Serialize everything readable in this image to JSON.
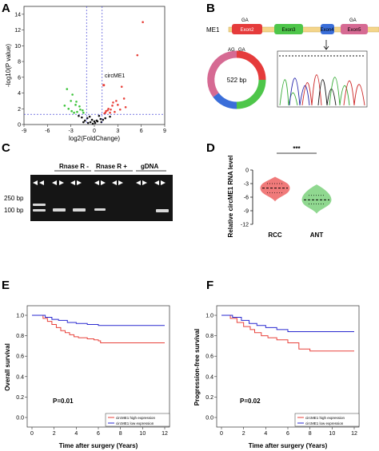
{
  "panels": {
    "A": {
      "label": "A"
    },
    "B": {
      "label": "B"
    },
    "C": {
      "label": "C"
    },
    "D": {
      "label": "D"
    },
    "E": {
      "label": "E"
    },
    "F": {
      "label": "F"
    }
  },
  "panelB": {
    "gene": "ME1",
    "exons": [
      "Exon2",
      "Exon3",
      "Exon4",
      "Exon5"
    ],
    "ga_top": "GA",
    "ga_top2": "GA",
    "ring_ag": "AG",
    "ring_ga": "GA",
    "ring_size": "522 bp"
  },
  "panelC": {
    "groups": [
      "Rnase R -",
      "Rnase R +",
      "gDNA"
    ],
    "markers": [
      "250 bp",
      "100 bp"
    ]
  },
  "colors": {
    "red": "#e8413a",
    "green": "#3cc43a",
    "blue": "#2a2ad0",
    "black": "#111111"
  },
  "chart_data": [
    {
      "panel": "A",
      "type": "scatter",
      "xlabel": "log2(FoldChange)",
      "ylabel": "-log10(P value)",
      "xticks": [
        "-9",
        "-6",
        "-3",
        "0",
        "3",
        "6",
        "9"
      ],
      "yticks": [
        "0",
        "2",
        "4",
        "6",
        "8",
        "10",
        "12",
        "14"
      ],
      "xlim": [
        -9,
        9
      ],
      "ylim": [
        0,
        15
      ],
      "thresholds": {
        "x": [
          -1,
          1
        ],
        "y": 1.3
      },
      "annotation": "circME1",
      "highlight_point": {
        "x": 1.2,
        "y": 5.0
      },
      "series": [
        {
          "color": "red",
          "points": [
            [
              6.2,
              13.0
            ],
            [
              5.5,
              8.8
            ],
            [
              3.5,
              4.8
            ],
            [
              2.8,
              3.0
            ],
            [
              2.3,
              2.4
            ],
            [
              1.8,
              2.0
            ],
            [
              1.5,
              1.7
            ],
            [
              2.1,
              1.9
            ],
            [
              3.0,
              2.5
            ],
            [
              2.6,
              1.6
            ],
            [
              1.4,
              1.5
            ],
            [
              3.3,
              1.9
            ],
            [
              4.0,
              2.2
            ],
            [
              2.0,
              1.5
            ],
            [
              1.7,
              1.8
            ],
            [
              2.4,
              2.8
            ],
            [
              3.8,
              3.3
            ],
            [
              1.3,
              1.4
            ]
          ]
        },
        {
          "color": "green",
          "points": [
            [
              -3.5,
              4.5
            ],
            [
              -2.8,
              3.8
            ],
            [
              -3.0,
              3.0
            ],
            [
              -2.4,
              2.5
            ],
            [
              -3.3,
              2.0
            ],
            [
              -1.8,
              1.9
            ],
            [
              -2.2,
              1.6
            ],
            [
              -1.4,
              1.5
            ],
            [
              -2.6,
              1.5
            ],
            [
              -3.8,
              2.4
            ],
            [
              -1.9,
              2.3
            ],
            [
              -2.9,
              1.7
            ],
            [
              -1.5,
              1.8
            ],
            [
              -2.3,
              2.9
            ]
          ]
        },
        {
          "color": "black",
          "points": [
            [
              -0.5,
              0.3
            ],
            [
              0.4,
              0.4
            ],
            [
              -0.9,
              0.8
            ],
            [
              0.8,
              0.7
            ],
            [
              -0.2,
              0.1
            ],
            [
              0.1,
              0.2
            ],
            [
              -0.6,
              1.0
            ],
            [
              0.6,
              1.1
            ],
            [
              -1.2,
              0.5
            ],
            [
              1.1,
              0.6
            ],
            [
              -1.6,
              0.9
            ],
            [
              1.4,
              0.8
            ],
            [
              -0.3,
              0.6
            ],
            [
              0.3,
              0.5
            ],
            [
              -2.0,
              1.1
            ],
            [
              2.0,
              1.0
            ],
            [
              -0.8,
              0.2
            ],
            [
              0.9,
              0.3
            ],
            [
              0.0,
              0.4
            ],
            [
              -1.4,
              0.3
            ]
          ]
        }
      ]
    },
    {
      "panel": "D",
      "type": "violin",
      "title": "***",
      "ylabel": "Relative circME1 RNA level",
      "categories": [
        "RCC",
        "ANT"
      ],
      "yticks": [
        "0",
        "-3",
        "-6",
        "-9",
        "-12"
      ],
      "ylim": [
        -12,
        0
      ],
      "series": [
        {
          "name": "RCC",
          "color": "#f07a7a",
          "median": -4.0,
          "q1": -5.0,
          "q3": -3.0,
          "min": -6.8,
          "max": -1.6
        },
        {
          "name": "ANT",
          "color": "#90d890",
          "median": -6.6,
          "q1": -7.5,
          "q3": -5.6,
          "min": -9.5,
          "max": -3.3
        }
      ]
    },
    {
      "panel": "E",
      "type": "line",
      "xlabel": "Time after surgery (Years)",
      "ylabel": "Overall survival",
      "annotation": "P=0.01",
      "xticks": [
        "0",
        "2",
        "4",
        "6",
        "8",
        "10",
        "12"
      ],
      "yticks": [
        "0.0",
        "0.2",
        "0.4",
        "0.6",
        "0.8",
        "1.0"
      ],
      "xlim": [
        0,
        12
      ],
      "ylim": [
        0,
        1
      ],
      "series": [
        {
          "name": "circME1 high expression",
          "color": "red",
          "x": [
            0,
            1.0,
            1.4,
            1.8,
            2.2,
            2.6,
            3.0,
            3.4,
            3.8,
            4.2,
            5.0,
            5.6,
            6.0,
            6.2,
            12
          ],
          "y": [
            1.0,
            0.97,
            0.94,
            0.91,
            0.88,
            0.85,
            0.83,
            0.81,
            0.79,
            0.78,
            0.77,
            0.76,
            0.75,
            0.73,
            0.73
          ]
        },
        {
          "name": "circME1 low expression",
          "color": "blue",
          "x": [
            0,
            1.2,
            1.8,
            2.4,
            3.2,
            4.0,
            5.0,
            6.0,
            12
          ],
          "y": [
            1.0,
            0.98,
            0.96,
            0.95,
            0.93,
            0.92,
            0.91,
            0.9,
            0.9
          ]
        }
      ]
    },
    {
      "panel": "F",
      "type": "line",
      "xlabel": "Time after surgery (Years)",
      "ylabel": "Progression-free survival",
      "annotation": "P=0.02",
      "xticks": [
        "0",
        "2",
        "4",
        "6",
        "8",
        "10",
        "12"
      ],
      "yticks": [
        "0.0",
        "0.2",
        "0.4",
        "0.6",
        "0.8",
        "1.0"
      ],
      "xlim": [
        0,
        12
      ],
      "ylim": [
        0,
        1
      ],
      "series": [
        {
          "name": "circME1 high expression",
          "color": "red",
          "x": [
            0,
            0.8,
            1.4,
            2.0,
            2.6,
            3.0,
            3.6,
            4.2,
            5.0,
            6.0,
            7.0,
            8.0,
            12
          ],
          "y": [
            1.0,
            0.97,
            0.93,
            0.89,
            0.86,
            0.83,
            0.8,
            0.78,
            0.76,
            0.73,
            0.67,
            0.65,
            0.65
          ]
        },
        {
          "name": "circME1 low expression",
          "color": "blue",
          "x": [
            0,
            1.0,
            1.8,
            2.5,
            3.2,
            4.0,
            5.0,
            6.0,
            12
          ],
          "y": [
            1.0,
            0.98,
            0.95,
            0.92,
            0.9,
            0.88,
            0.86,
            0.84,
            0.84
          ]
        }
      ]
    }
  ]
}
